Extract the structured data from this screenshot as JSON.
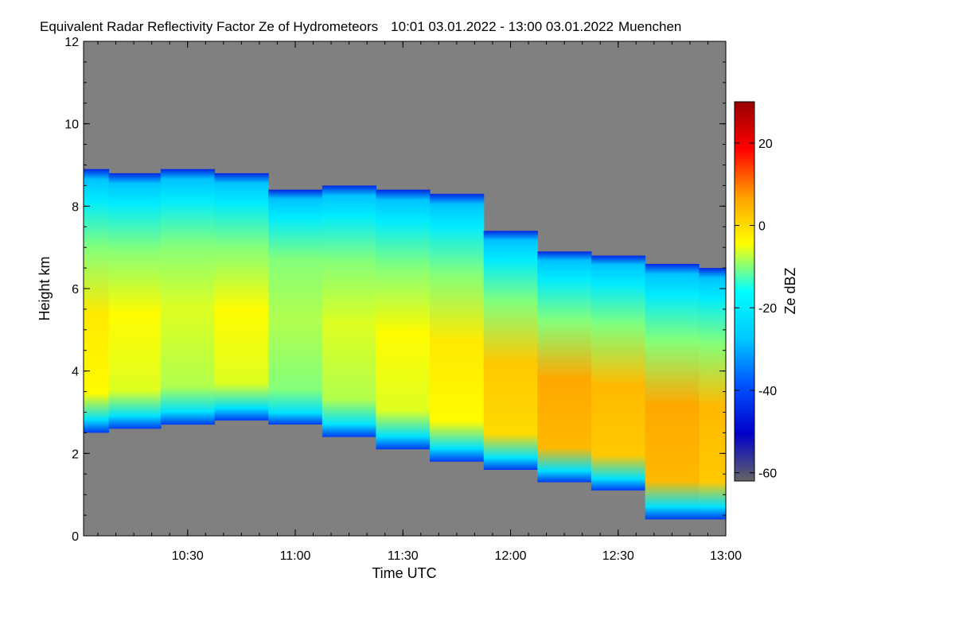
{
  "chart_data": {
    "type": "heatmap",
    "title": "Equivalent Radar Reflectivity Factor Ze of Hydrometeors",
    "time_range": "10:01 03.01.2022 - 13:00 03.01.2022",
    "location": "Muenchen",
    "xlabel": "Time UTC",
    "ylabel": "Height km",
    "xlim": [
      "10:01",
      "13:00"
    ],
    "ylim": [
      0,
      12
    ],
    "x_ticks": [
      "10:30",
      "11:00",
      "11:30",
      "12:00",
      "12:30",
      "13:00"
    ],
    "y_ticks": [
      "0",
      "2",
      "4",
      "6",
      "8",
      "10",
      "12"
    ],
    "colorbar": {
      "label": "Ze dBZ",
      "range": [
        -62,
        30
      ],
      "ticks": [
        "20",
        "0",
        "-20",
        "-40",
        "-60"
      ],
      "colors": [
        "#646464",
        "#0000c8",
        "#0050ff",
        "#00c8ff",
        "#00ffff",
        "#ffff00",
        "#ffa000",
        "#ff0000",
        "#960000"
      ],
      "no_echo_color": "#808080"
    },
    "series": [
      {
        "times": [
          "10:01",
          "10:15",
          "10:30",
          "10:45",
          "11:00",
          "11:15",
          "11:30",
          "11:45",
          "12:00",
          "12:15",
          "12:30",
          "12:45",
          "13:00"
        ],
        "cloud_top_km": [
          8.9,
          8.8,
          8.9,
          8.8,
          8.4,
          8.5,
          8.4,
          8.3,
          7.4,
          6.9,
          6.8,
          6.6,
          6.5
        ],
        "cloud_base_km": [
          2.5,
          2.6,
          2.7,
          2.8,
          2.7,
          2.4,
          2.1,
          1.8,
          1.6,
          1.3,
          1.1,
          0.4,
          0.4
        ],
        "peak_reflectivity_dBZ": [
          -2,
          -4,
          -6,
          -4,
          -8,
          -6,
          -4,
          -2,
          2,
          6,
          4,
          6,
          4
        ]
      }
    ]
  }
}
